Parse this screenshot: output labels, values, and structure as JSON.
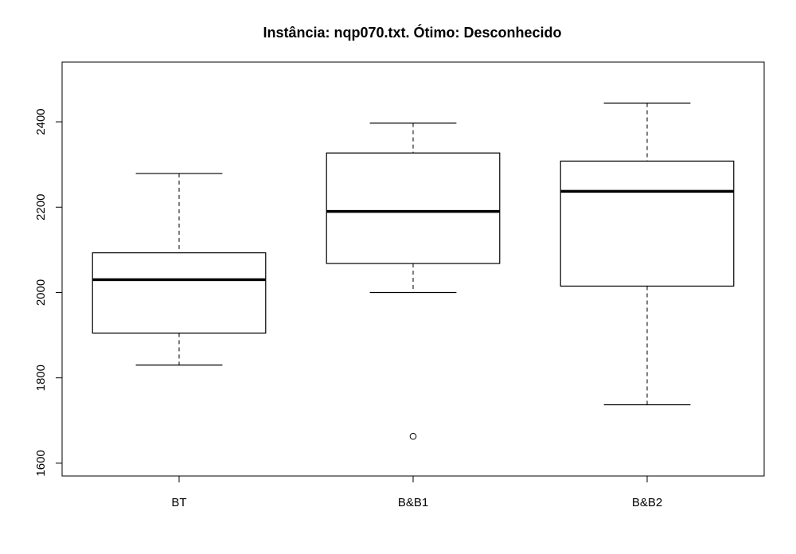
{
  "chart_data": {
    "type": "boxplot",
    "title": "Instância: nqp070.txt. Ótimo: Desconhecido",
    "xlabel": "",
    "ylabel": "",
    "ylim": [
      1570,
      2540
    ],
    "yticks": [
      1600,
      1800,
      2000,
      2200,
      2400
    ],
    "grid": false,
    "categories": [
      "BT",
      "B&B1",
      "B&B2"
    ],
    "boxes": [
      {
        "name": "BT",
        "whisker_low": 1830,
        "q1": 1905,
        "median": 2030,
        "q3": 2093,
        "whisker_high": 2279,
        "outliers": []
      },
      {
        "name": "B&B1",
        "whisker_low": 2000,
        "q1": 2068,
        "median": 2190,
        "q3": 2327,
        "whisker_high": 2397,
        "outliers": [
          1663
        ]
      },
      {
        "name": "B&B2",
        "whisker_low": 1737,
        "q1": 2015,
        "median": 2237,
        "q3": 2308,
        "whisker_high": 2444,
        "outliers": []
      }
    ]
  }
}
